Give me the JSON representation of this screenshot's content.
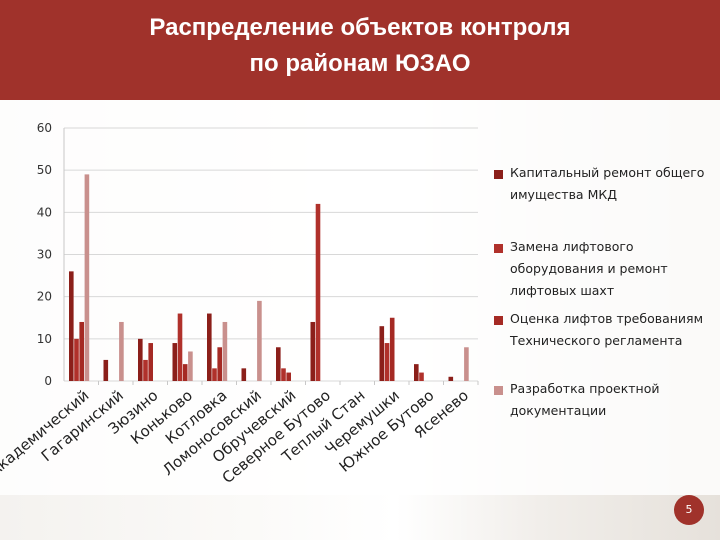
{
  "header": {
    "title_line1": "Распределение объектов контроля",
    "title_line2": "по районам ЮЗАО"
  },
  "page_number": "5",
  "colors": {
    "header": "#a0322b",
    "series": [
      "#8b1f1a",
      "#b0312b",
      "#a52a24",
      "#c9908d"
    ]
  },
  "chart_data": {
    "type": "bar",
    "ylim": [
      0,
      60
    ],
    "yticks": [
      "0",
      "10",
      "20",
      "30",
      "40",
      "50",
      "60"
    ],
    "grid": true,
    "legend_position": "right",
    "categories": [
      "Академический",
      "Гагаринский",
      "Зюзино",
      "Коньково",
      "Котловка",
      "Ломоносовский",
      "Обручевский",
      "Северное Бутово",
      "Теплый Стан",
      "Черемушки",
      "Южное Бутово",
      "Ясенево"
    ],
    "series": [
      {
        "name": "Капитальный ремонт общего имущества МКД",
        "values": [
          26,
          5,
          10,
          9,
          16,
          3,
          8,
          14,
          0,
          13,
          4,
          1
        ]
      },
      {
        "name": "Замена лифтового оборудования и ремонт лифтовых шахт",
        "values": [
          10,
          0,
          5,
          16,
          3,
          0,
          3,
          42,
          0,
          9,
          2,
          0
        ]
      },
      {
        "name": "Оценка лифтов требованиям Технического регламента",
        "values": [
          14,
          0,
          9,
          4,
          8,
          0,
          2,
          0,
          0,
          15,
          0,
          0
        ]
      },
      {
        "name": "Разработка проектной документации",
        "values": [
          49,
          14,
          0,
          7,
          14,
          19,
          0,
          0,
          0,
          0,
          0,
          8
        ]
      }
    ]
  }
}
